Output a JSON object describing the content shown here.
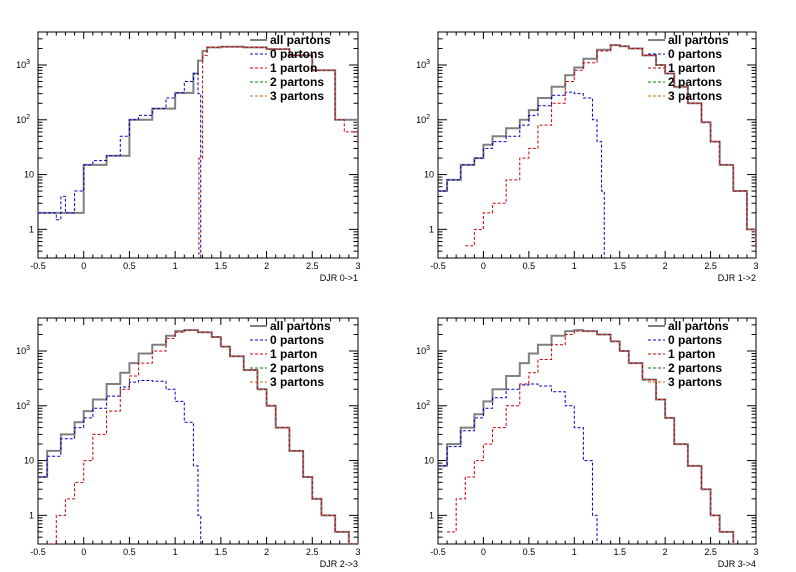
{
  "colors": {
    "all": "#808080",
    "p0": "#0000cc",
    "p1": "#cc0000",
    "p2": "#008000",
    "p3": "#cc6600"
  },
  "legend": [
    "all partons",
    "0 partons",
    "1 parton",
    "2 partons",
    "3 partons"
  ],
  "y_tick_labels": [
    "1",
    "10",
    "10",
    "10"
  ],
  "y_tick_exponents": [
    "",
    "",
    "2",
    "3"
  ],
  "chart_data": [
    {
      "type": "line",
      "xlabel": "DJR 0->1",
      "xlim": [
        -0.5,
        3
      ],
      "ylim": [
        0.3,
        4000
      ],
      "ylog": true,
      "x_ticks": [
        "-0.5",
        "0",
        "0.5",
        "1",
        "1.5",
        "2",
        "2.5",
        "3"
      ],
      "series": [
        {
          "key": "all",
          "name": "all partons",
          "x": [
            -0.5,
            -0.25,
            0,
            0.25,
            0.5,
            0.75,
            1,
            1.2,
            1.25,
            1.3,
            1.35,
            1.5,
            1.75,
            2,
            2.25,
            2.5,
            2.75,
            3
          ],
          "y": [
            2,
            2,
            15,
            22,
            100,
            160,
            310,
            700,
            1200,
            1800,
            2100,
            2150,
            2100,
            1950,
            1500,
            800,
            100,
            35
          ]
        },
        {
          "key": "p0",
          "name": "0 partons",
          "x": [
            -0.5,
            -0.4,
            -0.3,
            -0.25,
            -0.2,
            -0.1,
            0,
            0.1,
            0.25,
            0.4,
            0.5,
            0.6,
            0.75,
            0.9,
            1,
            1.1,
            1.2,
            1.25,
            1.28
          ],
          "y": [
            2,
            2,
            1.5,
            4,
            2,
            5,
            15,
            18,
            22,
            50,
            100,
            120,
            160,
            250,
            310,
            500,
            700,
            300,
            0.3
          ]
        },
        {
          "key": "p1",
          "name": "1 parton",
          "x": [
            1.24,
            1.26,
            1.3,
            1.35,
            1.5,
            1.75,
            2,
            2.25,
            2.5,
            2.75,
            2.85,
            3
          ],
          "y": [
            0.3,
            20,
            1500,
            2100,
            2150,
            2100,
            1950,
            1500,
            800,
            100,
            60,
            35
          ]
        },
        {
          "key": "p2",
          "name": "2 partons",
          "x": [],
          "y": []
        },
        {
          "key": "p3",
          "name": "3 partons",
          "x": [],
          "y": []
        }
      ]
    },
    {
      "type": "line",
      "xlabel": "DJR 1->2",
      "xlim": [
        -0.5,
        3
      ],
      "ylim": [
        0.3,
        4000
      ],
      "ylog": true,
      "x_ticks": [
        "-0.5",
        "0",
        "0.5",
        "1",
        "1.5",
        "2",
        "2.5",
        "3"
      ],
      "series": [
        {
          "key": "all",
          "name": "all partons",
          "x": [
            -0.5,
            -0.4,
            -0.25,
            -0.1,
            0,
            0.1,
            0.25,
            0.4,
            0.5,
            0.6,
            0.75,
            0.9,
            1,
            1.1,
            1.25,
            1.4,
            1.5,
            1.6,
            1.75,
            1.9,
            2,
            2.1,
            2.25,
            2.4,
            2.5,
            2.6,
            2.75,
            2.9,
            3
          ],
          "y": [
            5,
            8,
            15,
            20,
            35,
            50,
            70,
            100,
            150,
            250,
            400,
            650,
            900,
            1300,
            1900,
            2300,
            2200,
            2000,
            1500,
            1000,
            700,
            400,
            200,
            90,
            40,
            15,
            5,
            1,
            0.5
          ]
        },
        {
          "key": "p0",
          "name": "0 partons",
          "x": [
            -0.5,
            -0.4,
            -0.25,
            -0.1,
            0,
            0.1,
            0.25,
            0.4,
            0.5,
            0.6,
            0.75,
            0.9,
            1,
            1.1,
            1.2,
            1.25,
            1.3,
            1.33
          ],
          "y": [
            5,
            8,
            15,
            20,
            30,
            40,
            50,
            80,
            120,
            180,
            280,
            320,
            300,
            250,
            100,
            40,
            5,
            0.3
          ]
        },
        {
          "key": "p1",
          "name": "1 parton",
          "x": [
            -0.2,
            -0.1,
            0,
            0.1,
            0.25,
            0.4,
            0.5,
            0.6,
            0.75,
            0.9,
            1,
            1.1,
            1.25,
            1.4,
            1.5,
            1.6,
            1.75,
            1.9,
            2,
            2.1,
            2.25,
            2.4,
            2.5,
            2.6,
            2.75,
            2.9,
            3
          ],
          "y": [
            0.5,
            1,
            2,
            3,
            8,
            20,
            30,
            80,
            200,
            500,
            800,
            1100,
            1800,
            2300,
            2200,
            2000,
            1500,
            1000,
            700,
            400,
            200,
            90,
            40,
            15,
            5,
            1,
            0.5
          ]
        },
        {
          "key": "p2",
          "name": "2 partons",
          "x": [],
          "y": []
        },
        {
          "key": "p3",
          "name": "3 partons",
          "x": [],
          "y": []
        }
      ]
    },
    {
      "type": "line",
      "xlabel": "DJR 2->3",
      "xlim": [
        -0.5,
        3
      ],
      "ylim": [
        0.3,
        4000
      ],
      "ylog": true,
      "x_ticks": [
        "-0.5",
        "0",
        "0.5",
        "1",
        "1.5",
        "2",
        "2.5",
        "3"
      ],
      "series": [
        {
          "key": "all",
          "name": "all partons",
          "x": [
            -0.5,
            -0.4,
            -0.25,
            -0.1,
            0,
            0.1,
            0.25,
            0.4,
            0.5,
            0.6,
            0.75,
            0.9,
            1,
            1.1,
            1.25,
            1.4,
            1.5,
            1.6,
            1.75,
            1.9,
            2,
            2.1,
            2.25,
            2.4,
            2.5,
            2.6,
            2.75,
            2.9,
            3
          ],
          "y": [
            5,
            15,
            30,
            50,
            80,
            130,
            250,
            400,
            600,
            900,
            1300,
            1900,
            2300,
            2400,
            2200,
            1800,
            1200,
            800,
            450,
            200,
            100,
            40,
            15,
            5,
            2,
            1,
            0.5,
            0.3,
            0.3
          ]
        },
        {
          "key": "p0",
          "name": "0 partons",
          "x": [
            -0.5,
            -0.4,
            -0.25,
            -0.1,
            0,
            0.1,
            0.25,
            0.4,
            0.5,
            0.6,
            0.75,
            0.9,
            1,
            1.1,
            1.2,
            1.25,
            1.28
          ],
          "y": [
            5,
            12,
            25,
            40,
            60,
            90,
            150,
            220,
            270,
            290,
            280,
            200,
            120,
            50,
            8,
            1,
            0.3
          ]
        },
        {
          "key": "p1",
          "name": "1 parton",
          "x": [
            -0.4,
            -0.3,
            -0.2,
            -0.1,
            0,
            0.1,
            0.25,
            0.4,
            0.5,
            0.6,
            0.75,
            0.9,
            1,
            1.1,
            1.25,
            1.4,
            1.5,
            1.6,
            1.75,
            1.9,
            2,
            2.1,
            2.25,
            2.4,
            2.5,
            2.6,
            2.75,
            2.9,
            3
          ],
          "y": [
            0.3,
            1,
            2,
            4,
            10,
            30,
            80,
            200,
            350,
            600,
            1000,
            1700,
            2200,
            2400,
            2200,
            1800,
            1200,
            800,
            450,
            200,
            100,
            40,
            15,
            5,
            2,
            1,
            0.5,
            0.3,
            0.3
          ]
        },
        {
          "key": "p2",
          "name": "2 partons",
          "x": [],
          "y": []
        },
        {
          "key": "p3",
          "name": "3 partons",
          "x": [],
          "y": []
        }
      ]
    },
    {
      "type": "line",
      "xlabel": "DJR 3->4",
      "xlim": [
        -0.5,
        3
      ],
      "ylim": [
        0.3,
        4000
      ],
      "ylog": true,
      "x_ticks": [
        "-0.5",
        "0",
        "0.5",
        "1",
        "1.5",
        "2",
        "2.5",
        "3"
      ],
      "series": [
        {
          "key": "all",
          "name": "all partons",
          "x": [
            -0.5,
            -0.4,
            -0.25,
            -0.1,
            0,
            0.1,
            0.25,
            0.4,
            0.5,
            0.6,
            0.75,
            0.9,
            1,
            1.1,
            1.25,
            1.4,
            1.5,
            1.6,
            1.75,
            1.9,
            2,
            2.1,
            2.25,
            2.4,
            2.5,
            2.6,
            2.75
          ],
          "y": [
            8,
            20,
            40,
            70,
            120,
            200,
            350,
            600,
            900,
            1300,
            1900,
            2300,
            2400,
            2300,
            2000,
            1500,
            1000,
            600,
            300,
            130,
            60,
            20,
            8,
            3,
            1,
            0.5,
            0.3
          ]
        },
        {
          "key": "p0",
          "name": "0 partons",
          "x": [
            -0.5,
            -0.4,
            -0.25,
            -0.1,
            0,
            0.1,
            0.25,
            0.4,
            0.5,
            0.6,
            0.75,
            0.9,
            1,
            1.1,
            1.2,
            1.25
          ],
          "y": [
            8,
            18,
            35,
            60,
            90,
            140,
            200,
            240,
            250,
            230,
            180,
            100,
            40,
            10,
            1,
            0.3
          ]
        },
        {
          "key": "p1",
          "name": "1 parton",
          "x": [
            -0.4,
            -0.3,
            -0.2,
            -0.1,
            0,
            0.1,
            0.25,
            0.4,
            0.5,
            0.6,
            0.75,
            0.9,
            1,
            1.1,
            1.25,
            1.4,
            1.5,
            1.6,
            1.75,
            1.9,
            2,
            2.1,
            2.25,
            2.4,
            2.5,
            2.6,
            2.75
          ],
          "y": [
            0.5,
            2,
            5,
            10,
            20,
            40,
            100,
            250,
            400,
            700,
            1300,
            2000,
            2300,
            2300,
            2000,
            1500,
            1000,
            600,
            300,
            130,
            60,
            20,
            8,
            3,
            1,
            0.5,
            0.3
          ]
        },
        {
          "key": "p2",
          "name": "2 partons",
          "x": [],
          "y": []
        },
        {
          "key": "p3",
          "name": "3 partons",
          "x": [],
          "y": []
        }
      ]
    }
  ]
}
